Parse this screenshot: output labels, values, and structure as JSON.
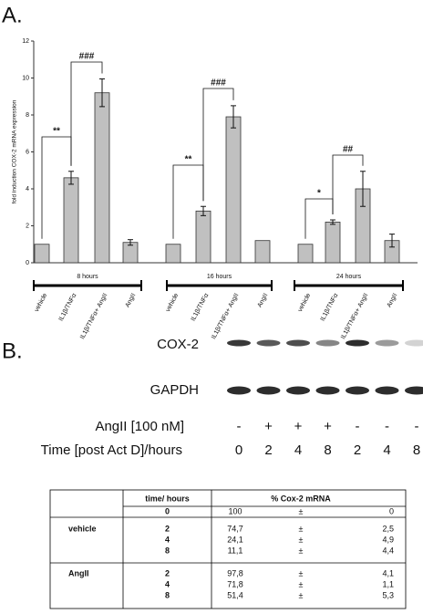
{
  "panel_a_label": "A.",
  "chart_data": {
    "type": "bar",
    "y_label": "fold induction COX-2 mRNA expression",
    "categories": [
      "vehicle",
      "IL1β/TNFα",
      "IL1β/TNFα+ AngII",
      "AngII",
      "vehicle",
      "IL1β/TNFα",
      "IL1β/TNFα+ AngII",
      "AngII",
      "vehicle",
      "IL1β/TNFα",
      "IL1β/TNFα+ AngII",
      "AngII"
    ],
    "values": [
      1,
      4.6,
      9.2,
      1.1,
      1,
      2.8,
      7.9,
      1.2,
      1,
      2.2,
      4.0,
      1.2
    ],
    "errors": [
      null,
      0.35,
      0.75,
      0.15,
      null,
      0.25,
      0.6,
      null,
      null,
      0.12,
      0.95,
      0.35
    ],
    "color": "#c0c0c0",
    "groups": [
      "8 hours",
      "16 hours",
      "24 hours"
    ],
    "annotations": [
      "**",
      "###",
      "**",
      "###",
      "*",
      "##"
    ],
    "ylim": [
      0,
      12
    ],
    "yticks": [
      0,
      2,
      4,
      6,
      8,
      10,
      12
    ],
    "grid": false
  },
  "panel_b": {
    "label": "B.",
    "blots": [
      "COX-2",
      "GAPDH"
    ],
    "angii_label": "AngII [100 nM]",
    "angii": [
      "-",
      "+",
      "+",
      "+",
      "-",
      "-",
      "-"
    ],
    "time_label": "Time [post Act D]/hours",
    "times": [
      "0",
      "2",
      "4",
      "8",
      "2",
      "4",
      "8"
    ]
  },
  "table": {
    "header": [
      "time/ hours",
      "% Cox-2 mRNA"
    ],
    "baseline": [
      "0",
      "100",
      "±",
      "0"
    ],
    "groups": [
      {
        "name": "vehicle",
        "rows": [
          [
            "2",
            "74,7",
            "±",
            "2,5"
          ],
          [
            "4",
            "24,1",
            "±",
            "4,9"
          ],
          [
            "8",
            "11,1",
            "±",
            "4,4"
          ]
        ]
      },
      {
        "name": "AngII",
        "rows": [
          [
            "2",
            "97,8",
            "±",
            "4,1"
          ],
          [
            "4",
            "71,8",
            "±",
            "1,1"
          ],
          [
            "8",
            "51,4",
            "±",
            "5,3"
          ]
        ]
      }
    ]
  }
}
